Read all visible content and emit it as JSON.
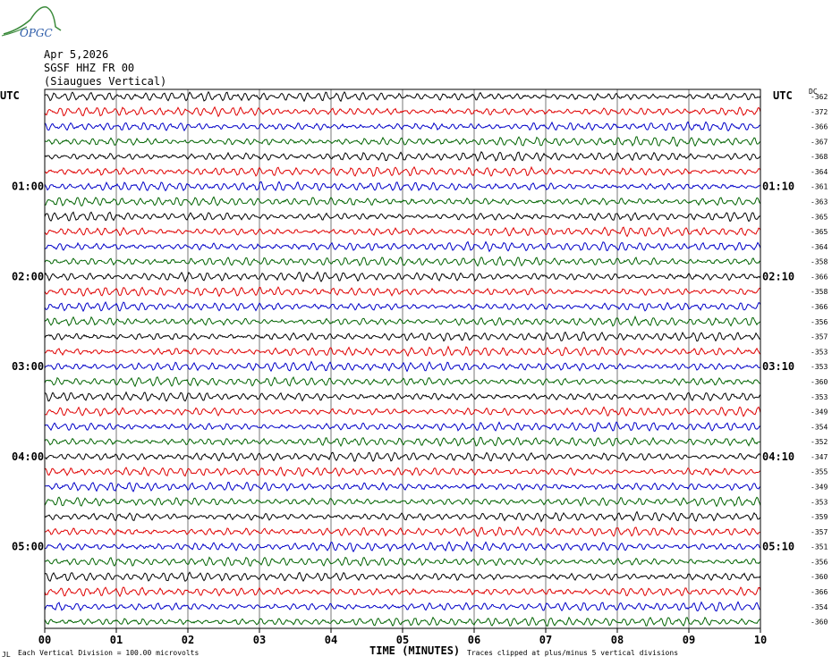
{
  "header": {
    "date": "Apr 5,2026",
    "station": "SGSF HHZ FR 00",
    "location": "(Siaugues Vertical)",
    "logo_text": "OPGC",
    "left_zone": "UTC",
    "right_zone": "UTC",
    "dc_label": "DC"
  },
  "footer": {
    "mark": "JL",
    "division": "Each Vertical Division =  100.00 microvolts",
    "clip": "Traces clipped at plus/minus 5 vertical divisions"
  },
  "colors": [
    "#000000",
    "#e00000",
    "#0000c8",
    "#006400"
  ],
  "chart_data": {
    "type": "line",
    "title": "",
    "xlabel": "TIME (MINUTES)",
    "ylabel": "",
    "xlim": [
      0,
      10
    ],
    "x_ticks": [
      "00",
      "01",
      "02",
      "03",
      "04",
      "05",
      "06",
      "07",
      "08",
      "09",
      "10"
    ],
    "traces_per_hour": 6,
    "trace_count": 36,
    "left_time_labels": [
      {
        "trace": 6,
        "label": "01:00"
      },
      {
        "trace": 12,
        "label": "02:00"
      },
      {
        "trace": 18,
        "label": "03:00"
      },
      {
        "trace": 24,
        "label": "04:00"
      },
      {
        "trace": 30,
        "label": "05:00"
      }
    ],
    "right_time_labels": [
      {
        "trace": 6,
        "label": "01:10"
      },
      {
        "trace": 12,
        "label": "02:10"
      },
      {
        "trace": 18,
        "label": "03:10"
      },
      {
        "trace": 24,
        "label": "04:10"
      },
      {
        "trace": 30,
        "label": "05:10"
      }
    ],
    "dc_offsets": [
      -362,
      -372,
      -366,
      -367,
      -368,
      -364,
      -361,
      -363,
      -365,
      -365,
      -364,
      -358,
      -366,
      -358,
      -366,
      -356,
      -357,
      -353,
      -353,
      -360,
      -353,
      -349,
      -354,
      -352,
      -347,
      -355,
      -349,
      -353,
      -359,
      -357,
      -351,
      -356,
      -360,
      -366,
      -354,
      -360
    ]
  }
}
